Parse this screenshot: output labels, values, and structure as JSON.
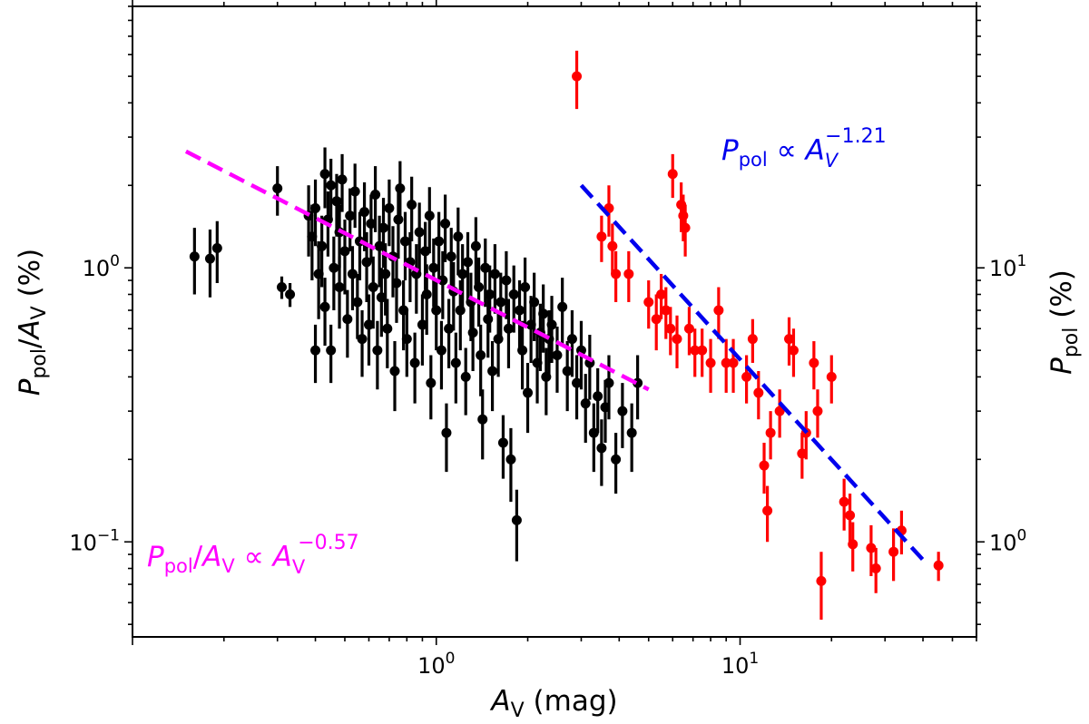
{
  "chart_data": {
    "type": "scatter",
    "title": "",
    "x_scale": "log",
    "y_left_scale": "log",
    "y_right_scale": "log",
    "xlim": [
      0.1,
      60
    ],
    "ylim_left": [
      0.045,
      9
    ],
    "ylim_right": [
      0.45,
      90
    ],
    "grid": false,
    "xlabel": {
      "main": "A",
      "sub": "V",
      "unit": " (mag)"
    },
    "ylabel_left": {
      "p": "P",
      "p_sub": "pol",
      "slash": "/",
      "a": "A",
      "a_sub": "V",
      "unit": " (%)"
    },
    "ylabel_right": {
      "p": "P",
      "p_sub": "pol",
      "unit": " (%)"
    },
    "x_tick_labels": [
      {
        "value": 1,
        "base": "10",
        "exp": "0"
      },
      {
        "value": 10,
        "base": "10",
        "exp": "1"
      }
    ],
    "y_left_tick_labels": [
      {
        "value": 0.1,
        "base": "10",
        "exp": "−1"
      },
      {
        "value": 1,
        "base": "10",
        "exp": "0"
      }
    ],
    "y_right_tick_labels": [
      {
        "value": 1,
        "base": "10",
        "exp": "0"
      },
      {
        "value": 10,
        "base": "10",
        "exp": "1"
      }
    ],
    "annotations": {
      "red_fit": {
        "p": "P",
        "p_sub": "pol",
        "prop": " ∝ ",
        "a": "A",
        "a_sub": "V",
        "exp": "−1.21"
      },
      "black_fit": {
        "p": "P",
        "p_sub": "pol",
        "slash": "/",
        "a": "A",
        "a_sub": "V",
        "prop": " ∝ ",
        "a2": "A",
        "a2_sub": "V",
        "exp": "−0.57"
      }
    },
    "colors": {
      "black_series": "#000000",
      "red_series": "#ff0000",
      "magenta_fit": "#ff00ff",
      "blue_fit": "#0000ee"
    },
    "fit_lines": [
      {
        "name": "magenta",
        "axis": "left",
        "x": [
          0.15,
          5.0
        ],
        "y": [
          2.66,
          0.36
        ]
      },
      {
        "name": "blue",
        "axis": "right",
        "x": [
          3.0,
          40.0
        ],
        "y": [
          20.0,
          0.86
        ]
      }
    ],
    "series": [
      {
        "axis": "left",
        "color": "#000000",
        "points": [
          [
            0.16,
            1.1,
            0.3
          ],
          [
            0.18,
            1.08,
            0.3
          ],
          [
            0.19,
            1.18,
            0.3
          ],
          [
            0.3,
            1.95,
            0.4
          ],
          [
            0.31,
            0.85,
            0.08
          ],
          [
            0.33,
            0.8,
            0.08
          ],
          [
            0.38,
            1.55,
            0.45
          ],
          [
            0.39,
            1.3,
            0.4
          ],
          [
            0.4,
            1.65,
            0.45
          ],
          [
            0.4,
            0.5,
            0.12
          ],
          [
            0.41,
            0.95,
            0.3
          ],
          [
            0.42,
            1.2,
            0.35
          ],
          [
            0.43,
            2.2,
            0.55
          ],
          [
            0.43,
            0.72,
            0.2
          ],
          [
            0.44,
            1.5,
            0.4
          ],
          [
            0.45,
            0.5,
            0.12
          ],
          [
            0.45,
            2.0,
            0.5
          ],
          [
            0.46,
            1.0,
            0.3
          ],
          [
            0.47,
            1.75,
            0.45
          ],
          [
            0.48,
            0.85,
            0.25
          ],
          [
            0.48,
            1.35,
            0.35
          ],
          [
            0.49,
            2.1,
            0.5
          ],
          [
            0.5,
            1.15,
            0.35
          ],
          [
            0.51,
            0.65,
            0.18
          ],
          [
            0.52,
            1.55,
            0.4
          ],
          [
            0.53,
            0.95,
            0.25
          ],
          [
            0.54,
            1.9,
            0.5
          ],
          [
            0.55,
            0.75,
            0.2
          ],
          [
            0.56,
            1.25,
            0.35
          ],
          [
            0.57,
            0.55,
            0.15
          ],
          [
            0.58,
            1.6,
            0.45
          ],
          [
            0.59,
            1.05,
            0.3
          ],
          [
            0.6,
            0.62,
            0.18
          ],
          [
            0.61,
            1.45,
            0.4
          ],
          [
            0.62,
            0.85,
            0.25
          ],
          [
            0.63,
            1.85,
            0.5
          ],
          [
            0.64,
            0.5,
            0.14
          ],
          [
            0.65,
            1.2,
            0.35
          ],
          [
            0.66,
            0.78,
            0.22
          ],
          [
            0.67,
            1.4,
            0.4
          ],
          [
            0.68,
            0.95,
            0.28
          ],
          [
            0.69,
            0.6,
            0.17
          ],
          [
            0.7,
            1.65,
            0.45
          ],
          [
            0.72,
            1.1,
            0.32
          ],
          [
            0.73,
            0.42,
            0.12
          ],
          [
            0.74,
            0.88,
            0.25
          ],
          [
            0.75,
            1.5,
            0.42
          ],
          [
            0.76,
            1.95,
            0.5
          ],
          [
            0.78,
            0.7,
            0.2
          ],
          [
            0.79,
            1.25,
            0.35
          ],
          [
            0.8,
            0.55,
            0.15
          ],
          [
            0.82,
            1.05,
            0.3
          ],
          [
            0.83,
            1.7,
            0.45
          ],
          [
            0.85,
            0.45,
            0.13
          ],
          [
            0.86,
            0.95,
            0.27
          ],
          [
            0.88,
            1.35,
            0.38
          ],
          [
            0.9,
            0.62,
            0.18
          ],
          [
            0.92,
            1.15,
            0.32
          ],
          [
            0.93,
            0.8,
            0.23
          ],
          [
            0.95,
            1.55,
            0.42
          ],
          [
            0.96,
            0.38,
            0.1
          ],
          [
            0.98,
            1.0,
            0.28
          ],
          [
            1.0,
            0.7,
            0.2
          ],
          [
            1.02,
            1.25,
            0.35
          ],
          [
            1.04,
            0.5,
            0.14
          ],
          [
            1.05,
            0.9,
            0.25
          ],
          [
            1.07,
            1.45,
            0.4
          ],
          [
            1.08,
            0.25,
            0.07
          ],
          [
            1.1,
            0.6,
            0.17
          ],
          [
            1.12,
            1.1,
            0.3
          ],
          [
            1.14,
            0.82,
            0.23
          ],
          [
            1.16,
            0.45,
            0.13
          ],
          [
            1.18,
            1.3,
            0.36
          ],
          [
            1.2,
            0.7,
            0.2
          ],
          [
            1.22,
            0.95,
            0.27
          ],
          [
            1.25,
            0.4,
            0.11
          ],
          [
            1.27,
            1.05,
            0.3
          ],
          [
            1.3,
            0.75,
            0.21
          ],
          [
            1.32,
            0.58,
            0.16
          ],
          [
            1.35,
            1.2,
            0.33
          ],
          [
            1.38,
            0.85,
            0.24
          ],
          [
            1.4,
            0.48,
            0.14
          ],
          [
            1.42,
            0.28,
            0.08
          ],
          [
            1.45,
            1.0,
            0.28
          ],
          [
            1.48,
            0.65,
            0.18
          ],
          [
            1.5,
            0.8,
            0.22
          ],
          [
            1.53,
            0.42,
            0.12
          ],
          [
            1.56,
            0.95,
            0.27
          ],
          [
            1.6,
            0.55,
            0.15
          ],
          [
            1.63,
            0.75,
            0.21
          ],
          [
            1.66,
            0.23,
            0.06
          ],
          [
            1.7,
            0.9,
            0.25
          ],
          [
            1.73,
            0.6,
            0.17
          ],
          [
            1.76,
            0.2,
            0.06
          ],
          [
            1.8,
            0.8,
            0.22
          ],
          [
            1.84,
            0.12,
            0.035
          ],
          [
            1.88,
            0.7,
            0.2
          ],
          [
            1.92,
            0.5,
            0.14
          ],
          [
            1.96,
            0.85,
            0.24
          ],
          [
            2.0,
            0.35,
            0.1
          ],
          [
            2.05,
            0.62,
            0.17
          ],
          [
            2.1,
            0.75,
            0.21
          ],
          [
            2.15,
            0.45,
            0.13
          ],
          [
            2.2,
            0.58,
            0.16
          ],
          [
            2.25,
            0.68,
            0.19
          ],
          [
            2.3,
            0.4,
            0.11
          ],
          [
            2.35,
            0.55,
            0.15
          ],
          [
            2.4,
            0.62,
            0.17
          ],
          [
            2.5,
            0.48,
            0.13
          ],
          [
            2.6,
            0.72,
            0.2
          ],
          [
            2.7,
            0.42,
            0.12
          ],
          [
            2.8,
            0.55,
            0.15
          ],
          [
            2.9,
            0.38,
            0.1
          ],
          [
            3.0,
            0.5,
            0.14
          ],
          [
            3.1,
            0.32,
            0.09
          ],
          [
            3.2,
            0.45,
            0.12
          ],
          [
            3.3,
            0.25,
            0.07
          ],
          [
            3.4,
            0.34,
            0.09
          ],
          [
            3.5,
            0.22,
            0.06
          ],
          [
            3.6,
            0.31,
            0.08
          ],
          [
            3.7,
            0.38,
            0.1
          ],
          [
            3.9,
            0.2,
            0.05
          ],
          [
            4.1,
            0.3,
            0.08
          ],
          [
            4.4,
            0.25,
            0.07
          ],
          [
            4.6,
            0.38,
            0.1
          ]
        ]
      },
      {
        "axis": "right",
        "color": "#ff0000",
        "points": [
          [
            2.9,
            50,
            12
          ],
          [
            3.5,
            13,
            2.5
          ],
          [
            3.7,
            16.5,
            3.5
          ],
          [
            3.8,
            12,
            2.5
          ],
          [
            3.9,
            9.5,
            2
          ],
          [
            4.3,
            9.5,
            2
          ],
          [
            5.0,
            7.5,
            1.5
          ],
          [
            5.3,
            6.5,
            1.5
          ],
          [
            5.5,
            8,
            1.5
          ],
          [
            5.7,
            7,
            1.5
          ],
          [
            5.9,
            6,
            1.2
          ],
          [
            6.0,
            22,
            4
          ],
          [
            6.2,
            5.5,
            1.2
          ],
          [
            6.4,
            17,
            3.5
          ],
          [
            6.5,
            15.5,
            3
          ],
          [
            6.6,
            14,
            3
          ],
          [
            6.8,
            6,
            1.2
          ],
          [
            7.1,
            5,
            1
          ],
          [
            7.5,
            5,
            1
          ],
          [
            8.0,
            4.5,
            1
          ],
          [
            8.5,
            7,
            1.5
          ],
          [
            9.0,
            4.5,
            1
          ],
          [
            9.5,
            4.5,
            1
          ],
          [
            10.5,
            4,
            0.8
          ],
          [
            11.0,
            5.5,
            1
          ],
          [
            11.5,
            3.5,
            0.7
          ],
          [
            12.0,
            1.9,
            0.4
          ],
          [
            12.3,
            1.3,
            0.3
          ],
          [
            12.6,
            2.5,
            0.5
          ],
          [
            13.5,
            3,
            0.6
          ],
          [
            14.5,
            5.5,
            1.1
          ],
          [
            15.0,
            5,
            1
          ],
          [
            16.0,
            2.1,
            0.4
          ],
          [
            16.5,
            2.5,
            0.5
          ],
          [
            17.5,
            4.5,
            0.9
          ],
          [
            18.0,
            3,
            0.6
          ],
          [
            18.5,
            0.72,
            0.2
          ],
          [
            20.0,
            4,
            0.8
          ],
          [
            22.0,
            1.4,
            0.3
          ],
          [
            23.0,
            1.25,
            0.25
          ],
          [
            23.5,
            0.98,
            0.2
          ],
          [
            27.0,
            0.95,
            0.2
          ],
          [
            28.0,
            0.8,
            0.15
          ],
          [
            32.0,
            0.92,
            0.2
          ],
          [
            34.0,
            1.1,
            0.2
          ],
          [
            45.0,
            0.82,
            0.1
          ]
        ]
      }
    ]
  }
}
